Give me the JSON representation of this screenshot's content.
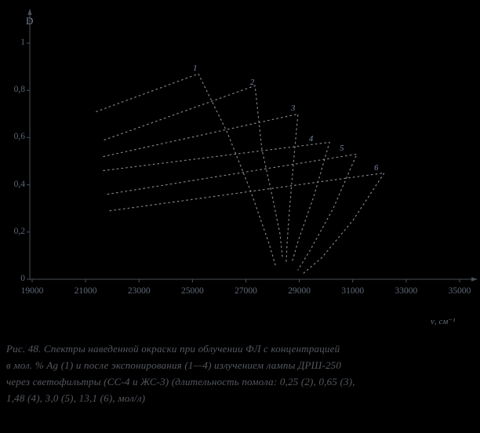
{
  "figure": {
    "caption": {
      "line1": "Рис. 48. Спектры наведенной окраски при облучении ФЛ с концентрацией",
      "line2": "в мол. % Ag (1) и после экспонирования (1—4) излучением лампы ДРШ-250",
      "line3": "через светофильтры (СС-4 и ЖС-3) (длительность помола: 0,25 (2), 0,65 (3),",
      "line4": "1,48 (4), 3,0 (5), 13,1 (6), мол/л)"
    }
  },
  "colors": {
    "background": "#000000",
    "axis": "#4a5056",
    "curve": "#8b9095",
    "tick_text": "#5e6878",
    "caption_text": "#54585e",
    "curve_label": "#7c89a8"
  },
  "chart_data": {
    "type": "line",
    "title": "",
    "xlabel": "ν, см⁻¹",
    "ylabel": "D",
    "xlim": [
      19000,
      35000
    ],
    "ylim": [
      0,
      1
    ],
    "grid": false,
    "legend": "numeric labels at curve maxima",
    "x_ticks": [
      19000,
      21000,
      23000,
      25000,
      27000,
      29000,
      31000,
      33000,
      35000
    ],
    "x_tick_labels": [
      "19000",
      "21000",
      "23000",
      "25000",
      "27000",
      "29000",
      "31000",
      "33000",
      "35000"
    ],
    "y_ticks": [
      1.0,
      0.8,
      0.6,
      0.4,
      0.2,
      0
    ],
    "y_tick_labels": [
      "1",
      "0,8",
      "0,6",
      "0,4",
      "0,2",
      "0"
    ],
    "line_style": "dotted",
    "series": [
      {
        "name": "curve-1",
        "points": [
          [
            21400,
            0.71
          ],
          [
            25220,
            0.87
          ],
          [
            26310,
            0.62
          ],
          [
            27190,
            0.37
          ],
          [
            27870,
            0.15
          ],
          [
            28130,
            0.05
          ]
        ]
      },
      {
        "name": "curve-2",
        "points": [
          [
            21700,
            0.59
          ],
          [
            27340,
            0.82
          ],
          [
            27600,
            0.55
          ],
          [
            28010,
            0.34
          ],
          [
            28280,
            0.19
          ],
          [
            28370,
            0.09
          ]
        ]
      },
      {
        "name": "curve-3",
        "points": [
          [
            21670,
            0.52
          ],
          [
            28950,
            0.7
          ],
          [
            28780,
            0.49
          ],
          [
            28630,
            0.29
          ],
          [
            28540,
            0.15
          ],
          [
            28510,
            0.07
          ]
        ]
      },
      {
        "name": "curve-4",
        "points": [
          [
            21670,
            0.46
          ],
          [
            30130,
            0.58
          ],
          [
            29540,
            0.35
          ],
          [
            28980,
            0.17
          ],
          [
            28720,
            0.07
          ]
        ]
      },
      {
        "name": "curve-5",
        "points": [
          [
            21820,
            0.36
          ],
          [
            31150,
            0.53
          ],
          [
            30270,
            0.3
          ],
          [
            29390,
            0.12
          ],
          [
            28950,
            0.04
          ]
        ]
      },
      {
        "name": "curve-6",
        "points": [
          [
            21910,
            0.29
          ],
          [
            32180,
            0.45
          ],
          [
            31010,
            0.25
          ],
          [
            29830,
            0.09
          ],
          [
            29100,
            0.02
          ]
        ]
      }
    ],
    "curve_labels": [
      {
        "text": "1",
        "nu": 25110,
        "D": 0.89
      },
      {
        "text": "2",
        "nu": 27250,
        "D": 0.83
      },
      {
        "text": "3",
        "nu": 28780,
        "D": 0.72
      },
      {
        "text": "4",
        "nu": 29450,
        "D": 0.59
      },
      {
        "text": "5",
        "nu": 30600,
        "D": 0.55
      },
      {
        "text": "6",
        "nu": 31890,
        "D": 0.47
      }
    ]
  }
}
